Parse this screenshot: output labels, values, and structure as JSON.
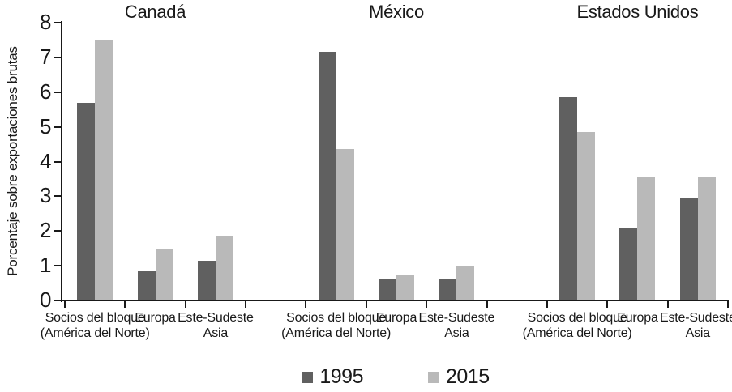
{
  "chart_data": {
    "type": "bar",
    "title": "",
    "ylabel": "Porcentaje sobre exportaciones brutas",
    "xlabel": "",
    "ylim": [
      0,
      8
    ],
    "yticks": [
      0,
      1,
      2,
      3,
      4,
      5,
      6,
      7,
      8
    ],
    "grid": false,
    "legend_position": "bottom",
    "axis_color": "#191919",
    "series_names": [
      "1995",
      "2015"
    ],
    "series_colors": [
      "#606060",
      "#b9b9b9"
    ],
    "categories": [
      [
        "Socios del bloque",
        "(América del Norte)"
      ],
      [
        "Europa"
      ],
      [
        "Este-Sudeste",
        "Asia"
      ]
    ],
    "panels": [
      {
        "title": "Canadá",
        "series": [
          {
            "name": "1995",
            "values": [
              5.7,
              0.85,
              1.15
            ]
          },
          {
            "name": "2015",
            "values": [
              7.5,
              1.5,
              1.85
            ]
          }
        ]
      },
      {
        "title": "México",
        "series": [
          {
            "name": "1995",
            "values": [
              7.15,
              0.6,
              0.6
            ]
          },
          {
            "name": "2015",
            "values": [
              4.35,
              0.75,
              1.0
            ]
          }
        ]
      },
      {
        "title": "Estados Unidos",
        "series": [
          {
            "name": "1995",
            "values": [
              5.85,
              2.1,
              2.95
            ]
          },
          {
            "name": "2015",
            "values": [
              4.85,
              3.55,
              3.55
            ]
          }
        ]
      }
    ]
  }
}
